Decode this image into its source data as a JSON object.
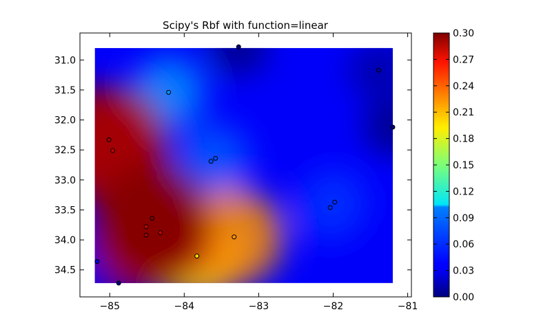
{
  "chart_data": {
    "type": "heatmap",
    "title": "Scipy's Rbf with function=linear",
    "xlabel": "",
    "ylabel": "",
    "xlim": [
      -85.4,
      -80.95
    ],
    "ylim": [
      34.95,
      30.55
    ],
    "y_axis_inverted": true,
    "grid": false,
    "x_ticks": [
      -85,
      -84,
      -83,
      -82,
      -81
    ],
    "x_tick_labels": [
      "−85",
      "−84",
      "−83",
      "−82",
      "−81"
    ],
    "y_ticks": [
      31.0,
      31.5,
      32.0,
      32.5,
      33.0,
      33.5,
      34.0,
      34.5
    ],
    "y_tick_labels": [
      "31.0",
      "31.5",
      "32.0",
      "32.5",
      "33.0",
      "33.5",
      "34.0",
      "34.5"
    ],
    "heatmap_extent": {
      "x": [
        -85.2,
        -81.2
      ],
      "y": [
        30.8,
        34.72
      ]
    },
    "colormap": "jet",
    "colorbar": {
      "min": 0.0,
      "max": 0.3,
      "ticks": [
        0.0,
        0.03,
        0.06,
        0.09,
        0.12,
        0.15,
        0.18,
        0.21,
        0.24,
        0.27,
        0.3
      ],
      "tick_labels": [
        "0.00",
        "0.03",
        "0.06",
        "0.09",
        "0.12",
        "0.15",
        "0.18",
        "0.21",
        "0.24",
        "0.27",
        "0.30"
      ]
    },
    "points": [
      {
        "x": -83.27,
        "y": 30.78,
        "value": 0.0
      },
      {
        "x": -81.39,
        "y": 31.17,
        "value": 0.01
      },
      {
        "x": -84.21,
        "y": 31.54,
        "value": 0.08
      },
      {
        "x": -81.2,
        "y": 32.12,
        "value": 0.0
      },
      {
        "x": -85.01,
        "y": 32.33,
        "value": 0.29
      },
      {
        "x": -84.96,
        "y": 32.51,
        "value": 0.28
      },
      {
        "x": -83.64,
        "y": 32.69,
        "value": 0.06
      },
      {
        "x": -83.58,
        "y": 32.64,
        "value": 0.06
      },
      {
        "x": -81.98,
        "y": 33.37,
        "value": 0.05
      },
      {
        "x": -82.04,
        "y": 33.46,
        "value": 0.05
      },
      {
        "x": -84.43,
        "y": 33.64,
        "value": 0.3
      },
      {
        "x": -84.51,
        "y": 33.78,
        "value": 0.28
      },
      {
        "x": -84.51,
        "y": 33.92,
        "value": 0.29
      },
      {
        "x": -84.32,
        "y": 33.88,
        "value": 0.28
      },
      {
        "x": -83.33,
        "y": 33.95,
        "value": 0.22
      },
      {
        "x": -83.83,
        "y": 34.27,
        "value": 0.2
      },
      {
        "x": -85.17,
        "y": 34.36,
        "value": 0.03
      },
      {
        "x": -84.88,
        "y": 34.72,
        "value": 0.0
      }
    ]
  }
}
